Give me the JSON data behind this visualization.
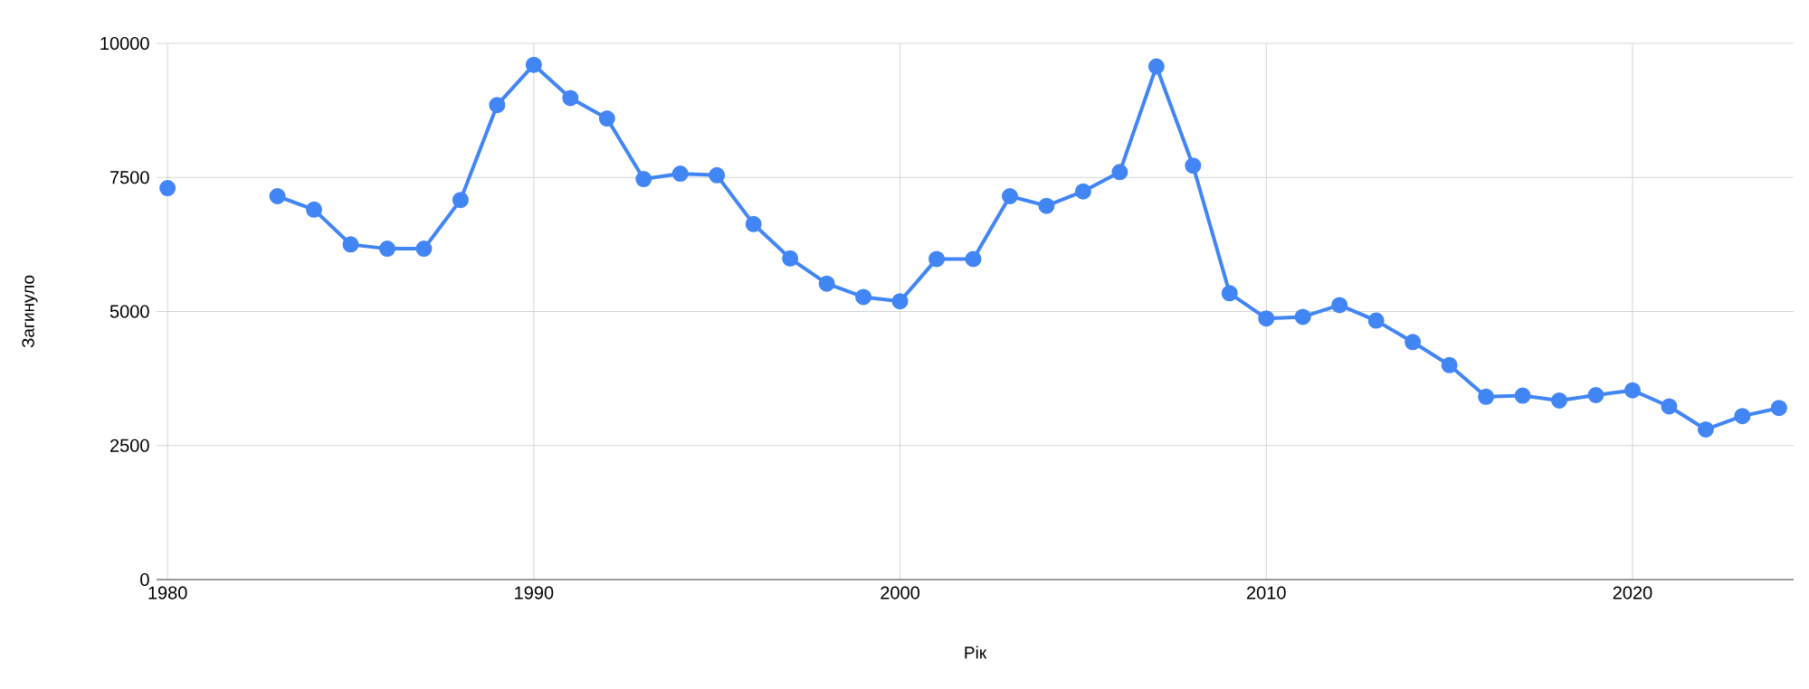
{
  "chart_data": {
    "type": "line",
    "xlabel": "Рік",
    "ylabel": "Загинуло",
    "x": [
      1980,
      1981,
      1982,
      1983,
      1984,
      1985,
      1986,
      1987,
      1988,
      1989,
      1990,
      1991,
      1992,
      1993,
      1994,
      1995,
      1996,
      1997,
      1998,
      1999,
      2000,
      2001,
      2002,
      2003,
      2004,
      2005,
      2006,
      2007,
      2008,
      2009,
      2010,
      2011,
      2012,
      2013,
      2014,
      2015,
      2016,
      2017,
      2018,
      2019,
      2020,
      2021,
      2022,
      2023,
      2024
    ],
    "series": [
      {
        "color": "#4285f4",
        "values": [
          7300,
          null,
          null,
          7150,
          6900,
          6250,
          6170,
          6170,
          7080,
          8850,
          9600,
          8980,
          8600,
          7470,
          7570,
          7540,
          6630,
          5990,
          5520,
          5270,
          5190,
          5980,
          5980,
          7150,
          6970,
          7240,
          7600,
          9570,
          7720,
          5340,
          4870,
          4900,
          5120,
          4830,
          4430,
          4000,
          3410,
          3430,
          3340,
          3440,
          3530,
          3230,
          2800,
          3050,
          3200
        ]
      }
    ],
    "xlim": [
      1979.7,
      2024.4
    ],
    "ylim": [
      0,
      10000
    ],
    "xticks": [
      1980,
      1990,
      2000,
      2010,
      2020
    ],
    "yticks": [
      0,
      2500,
      5000,
      7500,
      10000
    ],
    "grid": true,
    "marker": "circle",
    "line_style": "solid"
  }
}
